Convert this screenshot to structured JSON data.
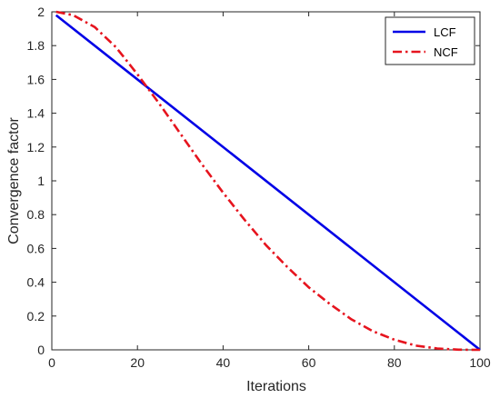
{
  "chart_data": {
    "type": "line",
    "title": "",
    "xlabel": "Iterations",
    "ylabel": "Convergence factor",
    "xlim": [
      0,
      100
    ],
    "ylim": [
      0,
      2
    ],
    "xticks": [
      0,
      20,
      40,
      60,
      80,
      100
    ],
    "yticks": [
      0,
      0.2,
      0.4,
      0.6,
      0.8,
      1,
      1.2,
      1.4,
      1.6,
      1.8,
      2
    ],
    "xtick_labels": [
      "0",
      "20",
      "40",
      "60",
      "80",
      "100"
    ],
    "ytick_labels": [
      "0",
      "0.2",
      "0.4",
      "0.6",
      "0.8",
      "1",
      "1.2",
      "1.4",
      "1.6",
      "1.8",
      "2"
    ],
    "grid": false,
    "legend_position": "top-right",
    "series": [
      {
        "name": "LCF",
        "color": "#0000e6",
        "style": "solid",
        "x": [
          1,
          100
        ],
        "y": [
          1.98,
          0
        ]
      },
      {
        "name": "NCF",
        "color": "#e6141e",
        "style": "dashdot",
        "x": [
          1,
          5,
          10,
          15,
          20,
          25,
          30,
          35,
          40,
          45,
          50,
          55,
          60,
          65,
          70,
          75,
          80,
          85,
          90,
          95,
          100
        ],
        "y": [
          2.0,
          1.98,
          1.91,
          1.79,
          1.63,
          1.46,
          1.28,
          1.1,
          0.93,
          0.77,
          0.62,
          0.49,
          0.37,
          0.27,
          0.18,
          0.11,
          0.06,
          0.025,
          0.008,
          0.001,
          0
        ]
      }
    ]
  }
}
